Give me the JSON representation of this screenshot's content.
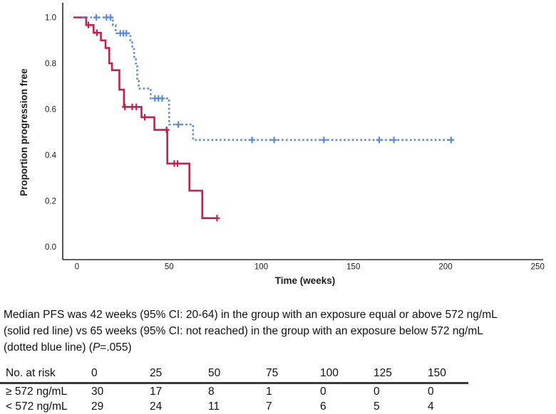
{
  "chart_data": {
    "type": "line",
    "subtype": "kaplan-meier-step",
    "title": "",
    "xlabel": "Time (weeks)",
    "ylabel": "Proportion progression free",
    "xlim": [
      0,
      250
    ],
    "ylim": [
      0.0,
      1.0
    ],
    "x_ticks": [
      0,
      50,
      100,
      150,
      200,
      250
    ],
    "y_ticks": [
      "1.0",
      "0.8",
      "0.6",
      "0.4",
      "0.2",
      "0.0"
    ],
    "grid": false,
    "legend": "none",
    "series": [
      {
        "name": "≥ 572 ng/mL (solid red line)",
        "line": "solid",
        "color": "#C81E4E",
        "n": 30,
        "median_weeks": 42,
        "points": [
          [
            -1.9,
            1.0
          ],
          [
            5,
            0.967
          ],
          [
            9,
            0.933
          ],
          [
            13,
            0.9
          ],
          [
            15.5,
            0.867
          ],
          [
            17.5,
            0.8
          ],
          [
            19,
            0.77
          ],
          [
            23,
            0.685
          ],
          [
            25.5,
            0.61
          ],
          [
            35,
            0.565
          ],
          [
            42,
            0.51
          ],
          [
            49,
            0.363
          ],
          [
            61,
            0.245
          ],
          [
            68,
            0.125
          ],
          [
            76,
            0.125
          ]
        ],
        "censor_marks": [
          [
            6.2,
            0.967
          ],
          [
            10.8,
            0.933
          ],
          [
            26,
            0.61
          ],
          [
            30,
            0.61
          ],
          [
            32.2,
            0.61
          ],
          [
            36.8,
            0.565
          ],
          [
            48.6,
            0.51
          ],
          [
            52.8,
            0.363
          ],
          [
            54.6,
            0.363
          ],
          [
            76,
            0.125
          ]
        ]
      },
      {
        "name": "< 572 ng/mL (dotted blue line)",
        "line": "dotted",
        "color": "#5B8CD9",
        "n": 29,
        "median_weeks": 65,
        "points": [
          [
            2.7,
            1.0
          ],
          [
            19.5,
            0.966
          ],
          [
            21,
            0.931
          ],
          [
            29,
            0.897
          ],
          [
            30,
            0.862
          ],
          [
            31,
            0.828
          ],
          [
            32,
            0.793
          ],
          [
            32.7,
            0.724
          ],
          [
            33.5,
            0.69
          ],
          [
            40,
            0.647
          ],
          [
            50,
            0.533
          ],
          [
            63,
            0.466
          ],
          [
            204,
            0.466
          ]
        ],
        "censor_marks": [
          [
            10.5,
            1.0
          ],
          [
            16,
            1.0
          ],
          [
            18.2,
            1.0
          ],
          [
            23.5,
            0.931
          ],
          [
            25.2,
            0.931
          ],
          [
            26.8,
            0.931
          ],
          [
            42.3,
            0.647
          ],
          [
            44.2,
            0.647
          ],
          [
            46.2,
            0.647
          ],
          [
            55,
            0.533
          ],
          [
            95,
            0.466
          ],
          [
            107,
            0.466
          ],
          [
            134,
            0.466
          ],
          [
            164,
            0.466
          ],
          [
            172,
            0.466
          ],
          [
            203,
            0.466
          ]
        ]
      }
    ]
  },
  "caption": {
    "line1": "Median PFS was 42 weeks (95% CI: 20-64) in the group with an exposure equal or above 572 ng/mL",
    "line2": "(solid red line) vs 65 weeks (95% CI: not reached) in the group with an exposure below 572 ng/mL",
    "line3_pre": "(dotted blue line) (",
    "line3_italic": "P",
    "line3_post": "=.055)"
  },
  "risk_table": {
    "title": "No. at risk",
    "time_points": [
      "0",
      "25",
      "50",
      "75",
      "100",
      "125",
      "150"
    ],
    "rows": [
      {
        "label": "≥ 572 ng/mL",
        "values": [
          "30",
          "17",
          "8",
          "1",
          "0",
          "0",
          "0"
        ]
      },
      {
        "label": "< 572 ng/mL",
        "values": [
          "29",
          "24",
          "11",
          "7",
          "6",
          "5",
          "4"
        ]
      }
    ]
  }
}
